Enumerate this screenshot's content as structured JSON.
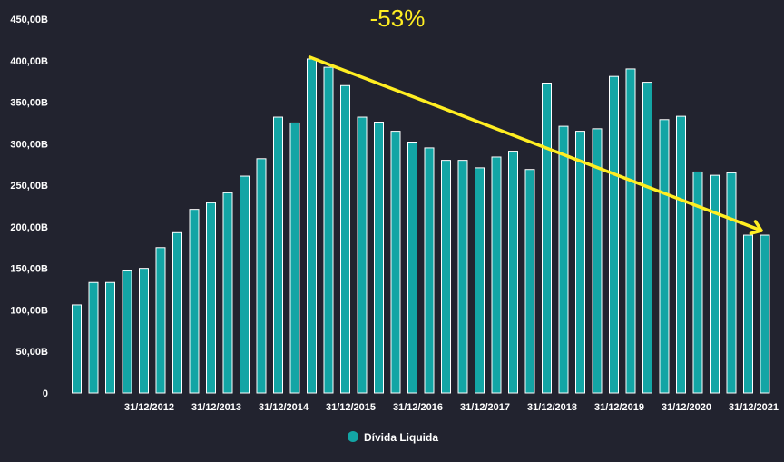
{
  "chart_data": {
    "type": "bar",
    "title": "",
    "xlabel": "",
    "ylabel": "",
    "ylim": [
      0,
      450
    ],
    "y_ticks": [
      {
        "value": 0,
        "label": "0"
      },
      {
        "value": 50,
        "label": "50,00B"
      },
      {
        "value": 100,
        "label": "100,00B"
      },
      {
        "value": 150,
        "label": "150,00B"
      },
      {
        "value": 200,
        "label": "200,00B"
      },
      {
        "value": 250,
        "label": "250,00B"
      },
      {
        "value": 300,
        "label": "300,00B"
      },
      {
        "value": 350,
        "label": "350,00B"
      },
      {
        "value": 400,
        "label": "400,00B"
      },
      {
        "value": 450,
        "label": "450,00B"
      }
    ],
    "x_tick_labels": [
      {
        "label": "31/12/2012",
        "bar_index": 4
      },
      {
        "label": "31/12/2013",
        "bar_index": 8
      },
      {
        "label": "31/12/2014",
        "bar_index": 12
      },
      {
        "label": "31/12/2015",
        "bar_index": 16
      },
      {
        "label": "31/12/2016",
        "bar_index": 20
      },
      {
        "label": "31/12/2017",
        "bar_index": 24
      },
      {
        "label": "31/12/2018",
        "bar_index": 28
      },
      {
        "label": "31/12/2019",
        "bar_index": 32
      },
      {
        "label": "31/12/2020",
        "bar_index": 36
      },
      {
        "label": "31/12/2021",
        "bar_index": 40
      }
    ],
    "series": [
      {
        "name": "Dívida Liquida",
        "color": "#13a5a5",
        "values": [
          106,
          133,
          133,
          147,
          150,
          175,
          193,
          221,
          229,
          241,
          261,
          282,
          332,
          325,
          402,
          392,
          370,
          332,
          326,
          315,
          302,
          295,
          280,
          280,
          271,
          284,
          291,
          269,
          373,
          321,
          315,
          318,
          381,
          390,
          374,
          329,
          333,
          266,
          262,
          265,
          190,
          190
        ]
      }
    ],
    "annotation": {
      "text": "-53%",
      "color": "#ffee22",
      "arrow_from_bar": 14,
      "arrow_to_bar": 41
    },
    "legend_position": "bottom-center",
    "grid": false
  }
}
